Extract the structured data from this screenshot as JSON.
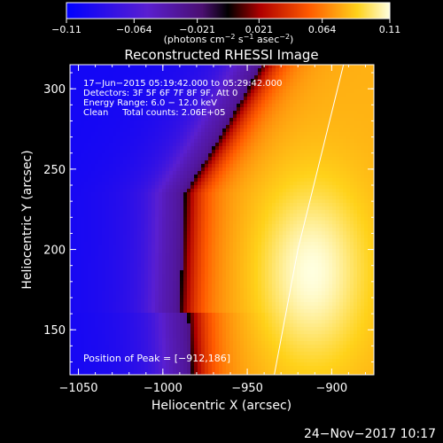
{
  "chart_data": {
    "type": "heatmap",
    "title": "Reconstructed RHESSI Image",
    "xlabel": "Heliocentric X (arcsec)",
    "ylabel": "Heliocentric Y (arcsec)",
    "xlim": [
      -1055,
      -875
    ],
    "ylim": [
      122,
      315
    ],
    "x_ticks": [
      -1050,
      -1000,
      -950,
      -900
    ],
    "x_tick_labels": [
      "−1050",
      "−1000",
      "−950",
      "−900"
    ],
    "y_ticks": [
      150,
      200,
      250,
      300
    ],
    "y_tick_labels": [
      "150",
      "200",
      "250",
      "300"
    ],
    "colorbar": {
      "range": [
        -0.11,
        0.11
      ],
      "ticks": [
        -0.11,
        -0.064,
        -0.021,
        0.021,
        0.064,
        0.11
      ],
      "tick_labels": [
        "−0.11",
        "−0.064",
        "−0.021",
        "0.021",
        "0.064",
        "0.11"
      ],
      "unit_label_parts": [
        "(photons cm",
        "−2",
        " s",
        "−1",
        " asec",
        "−2",
        ")"
      ]
    },
    "annotations": [
      "17−Jun−2015 05:19:42.000 to 05:29:42.000",
      "Detectors: 3F 5F 6F 7F 8F 9F, Att 0",
      "Energy Range: 6.0 − 12.0 keV",
      "Clean     Total counts: 2.06E+05"
    ],
    "peak_label": "Position of Peak = [−912,186]",
    "peak": [
      -912,
      186
    ],
    "limb_line": [
      [
        -934,
        122
      ],
      [
        -920,
        200
      ],
      [
        -893,
        315
      ]
    ]
  },
  "timestamp": "24−Nov−2017 10:17"
}
